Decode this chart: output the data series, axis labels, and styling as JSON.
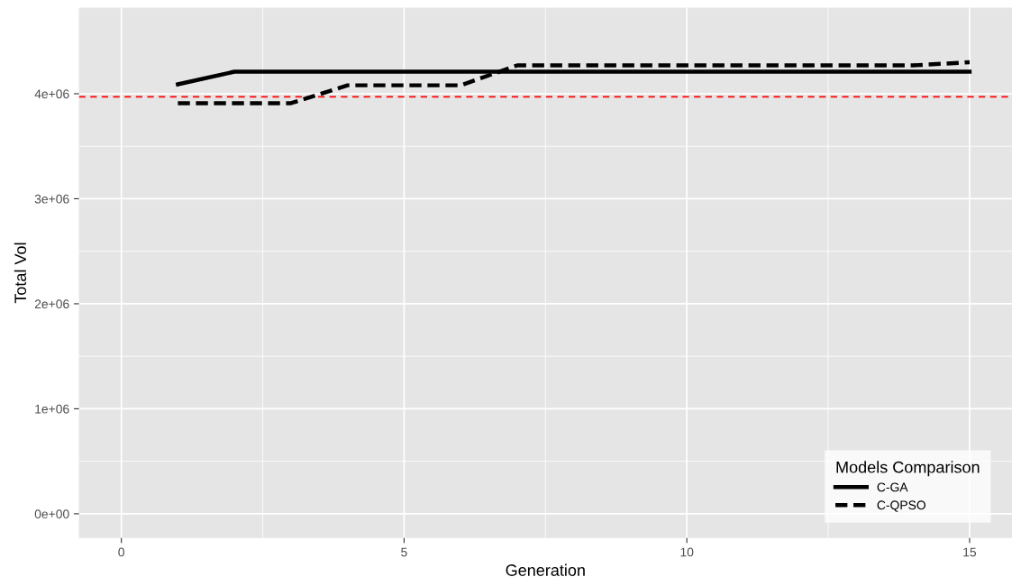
{
  "chart_data": {
    "type": "line",
    "xlabel": "Generation",
    "ylabel": "Total Vol",
    "legend_title": "Models Comparison",
    "x": [
      1,
      2,
      3,
      4,
      5,
      6,
      7,
      8,
      9,
      10,
      11,
      12,
      13,
      14,
      15
    ],
    "series": [
      {
        "name": "C-GA",
        "color": "#000000",
        "line_style": "solid",
        "values": [
          4090000,
          4210000,
          4210000,
          4210000,
          4210000,
          4210000,
          4210000,
          4210000,
          4210000,
          4210000,
          4210000,
          4210000,
          4210000,
          4210000,
          4210000
        ]
      },
      {
        "name": "C-QPSO",
        "color": "#000000",
        "line_style": "dashed",
        "values": [
          3910000,
          3910000,
          3910000,
          4080000,
          4080000,
          4080000,
          4270000,
          4270000,
          4270000,
          4270000,
          4270000,
          4270000,
          4270000,
          4270000,
          4300000
        ]
      }
    ],
    "ref_lines": [
      {
        "axis": "y",
        "value": 3970000,
        "color": "#ff0000",
        "line_style": "dashed"
      }
    ],
    "xlim": [
      -0.75,
      15.75
    ],
    "xticks": [
      0,
      5,
      10,
      15
    ],
    "ylim": [
      -230000,
      4820000
    ],
    "yticks": [
      {
        "value": 0,
        "label": "0e+00"
      },
      {
        "value": 1000000,
        "label": "1e+06"
      },
      {
        "value": 2000000,
        "label": "2e+06"
      },
      {
        "value": 3000000,
        "label": "3e+06"
      },
      {
        "value": 4000000,
        "label": "4e+06"
      }
    ],
    "grid": true,
    "legend": "bottom right"
  }
}
